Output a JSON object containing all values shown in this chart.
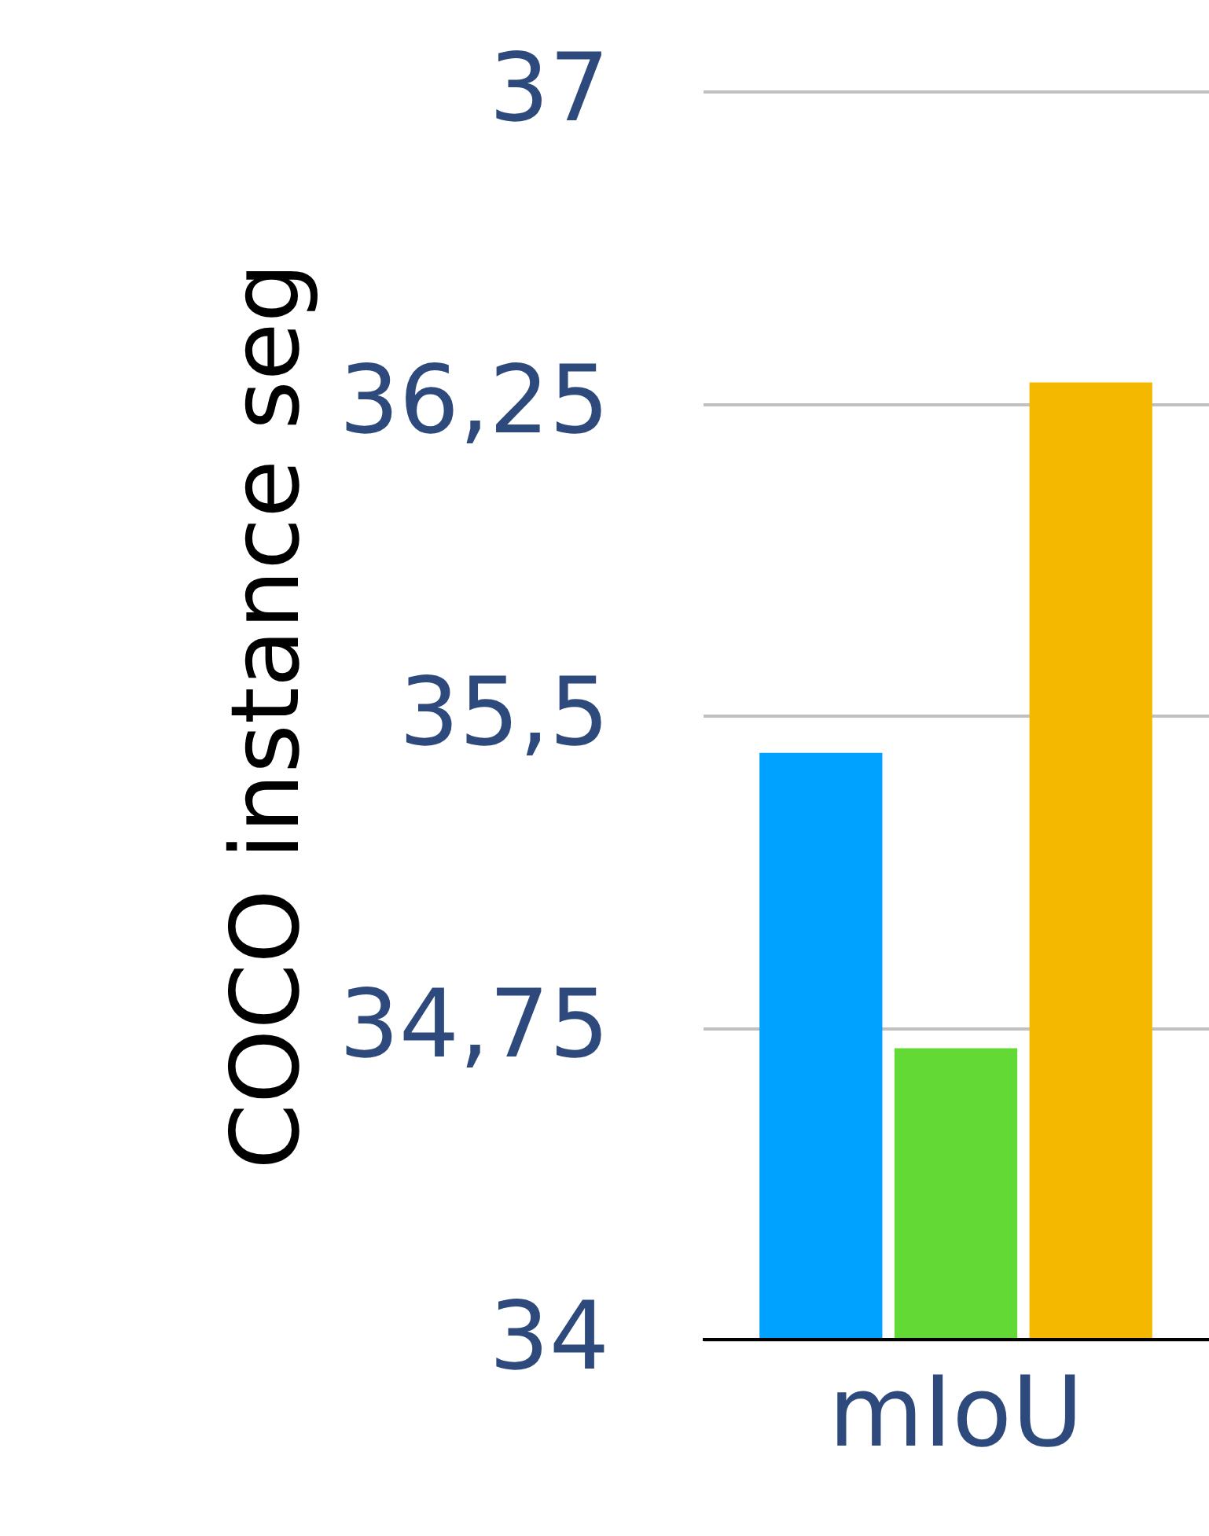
{
  "chart_data": {
    "type": "bar",
    "ylabel": "COCO instance seg",
    "categories": [
      "mIoU"
    ],
    "series": [
      {
        "color": "#00a2ff",
        "values": [
          35.41
        ]
      },
      {
        "color": "#62d935",
        "values": [
          34.7
        ]
      },
      {
        "color": "#f5b800",
        "values": [
          36.3
        ]
      }
    ],
    "ylim": [
      34,
      37
    ],
    "yticks": [
      34,
      {
        "value": 34.75,
        "label": "34,75"
      },
      {
        "value": 35.5,
        "label": "35,5"
      },
      {
        "value": 36.25,
        "label": "36,25"
      },
      37
    ],
    "grid": "y",
    "legend": false
  }
}
